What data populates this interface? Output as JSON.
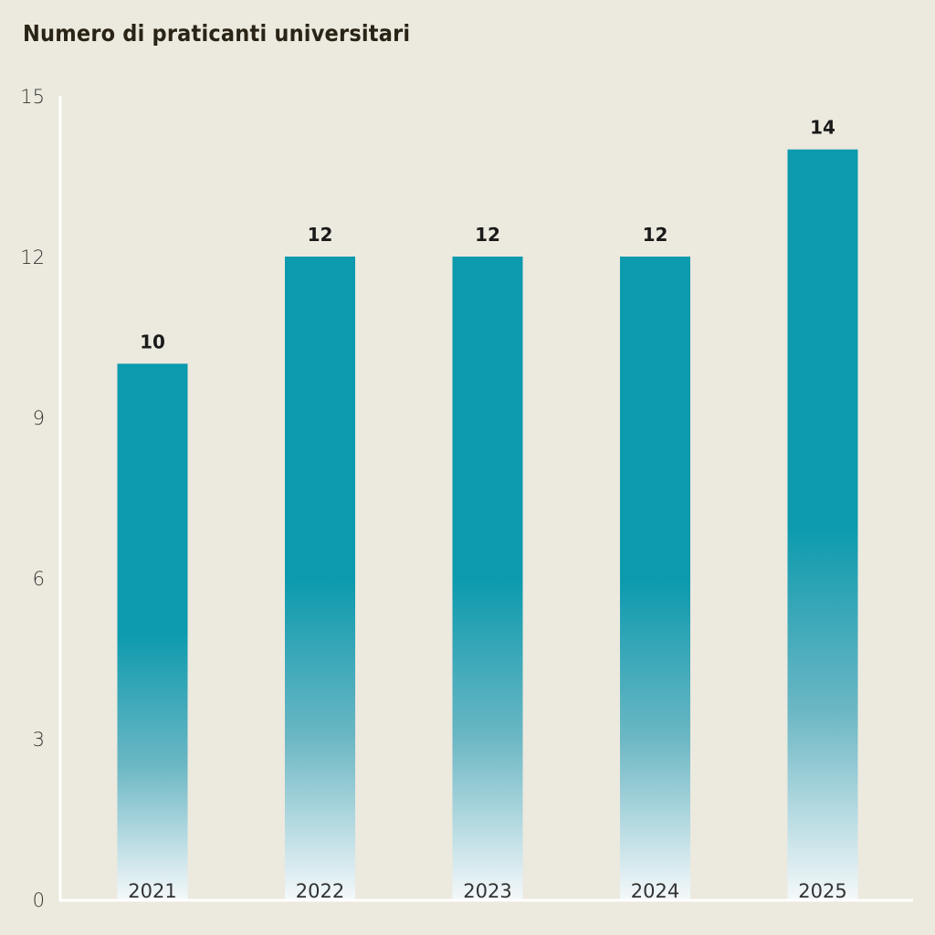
{
  "chart_data": {
    "type": "bar",
    "title": "Numero di praticanti universitari",
    "xlabel": "",
    "ylabel": "",
    "categories": [
      "2021",
      "2022",
      "2023",
      "2024",
      "2025"
    ],
    "values": [
      10,
      12,
      12,
      12,
      14
    ],
    "data_labels": [
      "10",
      "12",
      "12",
      "12",
      "14"
    ],
    "ylim": [
      0,
      15
    ],
    "yticks": [
      0,
      3,
      6,
      9,
      12,
      15
    ],
    "ytick_labels": [
      "0",
      "3",
      "6",
      "9",
      "12",
      "15"
    ],
    "grid": false,
    "legend": "none",
    "colors": {
      "bar_top": "#0B9AAE",
      "bar_bottom": "#F4F8FA",
      "background": "#ECE9DE",
      "axis": "#FFFFFF"
    }
  }
}
